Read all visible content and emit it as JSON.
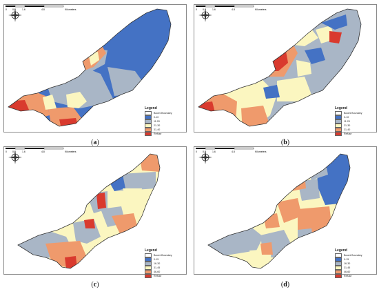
{
  "panels": [
    {
      "id": "a",
      "caption_open": "(",
      "caption_letter": "a",
      "caption_close": ")"
    },
    {
      "id": "b",
      "caption_open": "(",
      "caption_letter": "b",
      "caption_close": ")"
    },
    {
      "id": "c",
      "caption_open": "(",
      "caption_letter": "c",
      "caption_close": ")"
    },
    {
      "id": "d",
      "caption_open": "(",
      "caption_letter": "d",
      "caption_close": ")"
    }
  ],
  "legend": {
    "title": "Legend",
    "boundary": "Boomi Boundary",
    "ab_classes": [
      "0-10",
      "11-20",
      "21-30",
      "31-40",
      "Refuse"
    ],
    "cd_classes": [
      "0-15",
      "16-30",
      "31-45",
      "46-60",
      "Refuse"
    ]
  },
  "colors": {
    "boundary": "#ffffff",
    "c1": "#4472c4",
    "c2": "#a9b6c6",
    "c3": "#fbf6c0",
    "c4": "#ef9a6c",
    "refuse": "#d93a2e"
  },
  "scale_labels": [
    "0",
    "0.8",
    "1.6",
    "3.2",
    "4.8",
    "6.4",
    "Kilometers"
  ],
  "icons": {
    "compass": "north-arrow-compass"
  }
}
